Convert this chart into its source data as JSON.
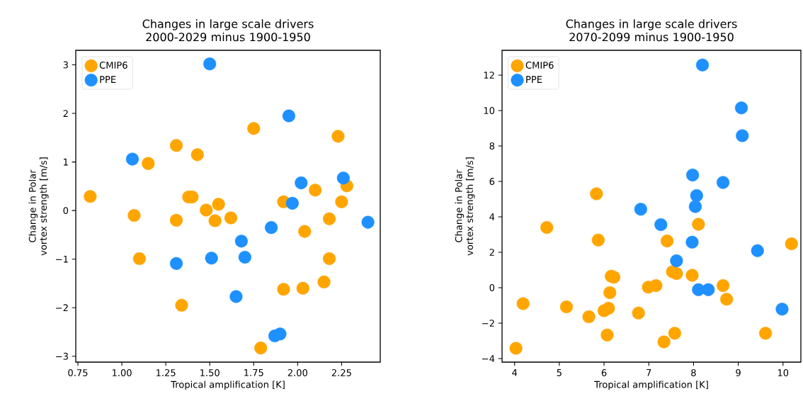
{
  "chart_data": [
    {
      "type": "scatter",
      "title": "Changes in large scale drivers 2000-2029 minus 1900-1950",
      "xlabel": "Tropical amplification [K]",
      "ylabel": "Change in Polar vortex strength [m/s]",
      "legend": "top left",
      "marker": "circle",
      "xlim": [
        0.738,
        2.47
      ],
      "ylim": [
        -3.12,
        3.3
      ],
      "xticks": [
        {
          "value": 0.75,
          "label": "0.75"
        },
        {
          "value": 1,
          "label": "1.00"
        },
        {
          "value": 1.25,
          "label": "1.25"
        },
        {
          "value": 1.5,
          "label": "1.50"
        },
        {
          "value": 1.75,
          "label": "1.75"
        },
        {
          "value": 2,
          "label": "2.00"
        },
        {
          "value": 2.25,
          "label": "2.25"
        }
      ],
      "yticks": [
        {
          "value": -3,
          "label": "−3"
        },
        {
          "value": -2,
          "label": "−2"
        },
        {
          "value": -1,
          "label": "−1"
        },
        0,
        1,
        2,
        3
      ],
      "series": [
        {
          "name": "CMIP6",
          "color": "#ffa500",
          "x": [
            0.82,
            1.07,
            1.15,
            1.1,
            1.31,
            1.31,
            1.34,
            1.43,
            1.38,
            1.4,
            1.48,
            1.55,
            1.53,
            1.62,
            1.75,
            1.79,
            1.92,
            1.92,
            2.03,
            2.04,
            2.1,
            2.23,
            2.28,
            2.18,
            2.18,
            2.15,
            2.25
          ],
          "values": [
            0.29,
            -0.1,
            0.97,
            -0.99,
            1.34,
            -0.2,
            -1.95,
            1.15,
            0.28,
            0.28,
            0.01,
            0.13,
            -0.21,
            -0.15,
            1.69,
            -2.83,
            0.18,
            -1.62,
            -1.6,
            -0.43,
            0.42,
            1.53,
            0.51,
            -0.17,
            -0.99,
            -1.47,
            0.18
          ]
        },
        {
          "name": "PPE",
          "color": "#1e90ff",
          "x": [
            1.06,
            1.5,
            1.95,
            1.31,
            1.51,
            1.68,
            1.7,
            1.65,
            1.85,
            2.02,
            1.97,
            2.26,
            2.4,
            1.87,
            1.9
          ],
          "values": [
            1.06,
            3.02,
            1.95,
            -1.09,
            -0.98,
            -0.63,
            -0.96,
            -1.77,
            -0.35,
            0.57,
            0.15,
            0.67,
            -0.24,
            -2.58,
            -2.54
          ]
        }
      ]
    },
    {
      "type": "scatter",
      "title": "Changes in large scale drivers 2070-2099 minus 1900-1950",
      "xlabel": "Tropical amplification [K]",
      "ylabel": "Change in Polar vortex strength [m/s]",
      "legend": "top left",
      "marker": "circle",
      "xlim": [
        3.72,
        10.4
      ],
      "ylim": [
        -4.2,
        13.4
      ],
      "xticks": [
        4,
        5,
        6,
        7,
        8,
        9,
        10
      ],
      "yticks": [
        {
          "value": -4,
          "label": "−4"
        },
        {
          "value": -2,
          "label": "−2"
        },
        0,
        2,
        4,
        6,
        8,
        10,
        12
      ],
      "series": [
        {
          "name": "CMIP6",
          "color": "#ffa500",
          "x": [
            4.03,
            4.19,
            4.72,
            5.16,
            5.66,
            5.87,
            5.83,
            6.0,
            6.1,
            6.07,
            6.13,
            6.16,
            6.22,
            6.77,
            6.99,
            7.16,
            7.41,
            7.34,
            7.53,
            7.62,
            7.58,
            7.97,
            8.11,
            8.66,
            8.74,
            9.61,
            10.19
          ],
          "values": [
            -3.42,
            -0.9,
            3.4,
            -1.08,
            -1.64,
            2.69,
            5.3,
            -1.3,
            -1.16,
            -2.67,
            -0.28,
            0.65,
            0.59,
            -1.43,
            0.03,
            0.12,
            2.64,
            -3.06,
            0.9,
            0.8,
            -2.57,
            0.7,
            3.58,
            0.12,
            -0.65,
            -2.57,
            2.48
          ]
        },
        {
          "name": "PPE",
          "color": "#1e90ff",
          "x": [
            8.2,
            9.07,
            9.09,
            7.98,
            8.66,
            8.07,
            8.04,
            6.82,
            7.27,
            7.97,
            7.62,
            9.43,
            8.11,
            8.33,
            9.98
          ],
          "values": [
            12.57,
            10.15,
            8.58,
            6.36,
            5.94,
            5.2,
            4.58,
            4.43,
            3.56,
            2.57,
            1.52,
            2.09,
            -0.11,
            -0.11,
            -1.21
          ]
        }
      ]
    }
  ]
}
